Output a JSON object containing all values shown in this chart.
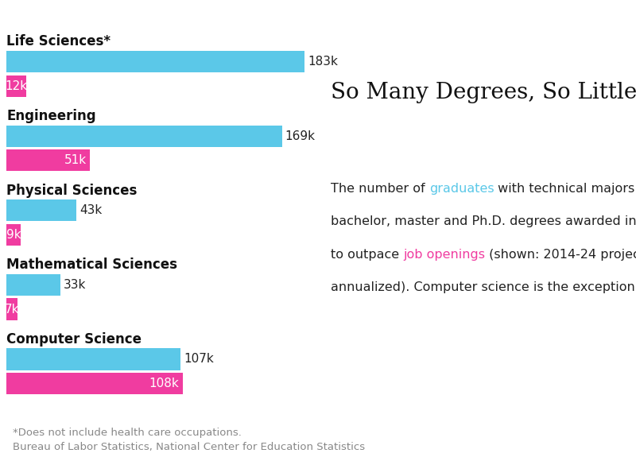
{
  "categories": [
    "Life Sciences*",
    "Engineering",
    "Physical Sciences",
    "Mathematical Sciences",
    "Computer Science"
  ],
  "graduates": [
    183,
    169,
    43,
    33,
    107
  ],
  "job_openings": [
    12,
    51,
    9,
    7,
    108
  ],
  "graduate_color": "#5BC8E8",
  "job_color": "#F03CA0",
  "background_color": "#FFFFFF",
  "title": "So Many Degrees, So Little Demand",
  "footnote1": "*Does not include health care occupations.",
  "footnote2": "Bureau of Labor Statistics, National Center for Education Statistics",
  "max_val": 195,
  "bar_height": 0.32,
  "label_fontsize": 11,
  "category_fontsize": 12,
  "title_fontsize": 20,
  "body_fontsize": 11.5,
  "graduate_color_label": "#5BC8E8",
  "job_color_label": "#F03CA0",
  "normal_color": "#222222",
  "footnote_color": "#888888"
}
